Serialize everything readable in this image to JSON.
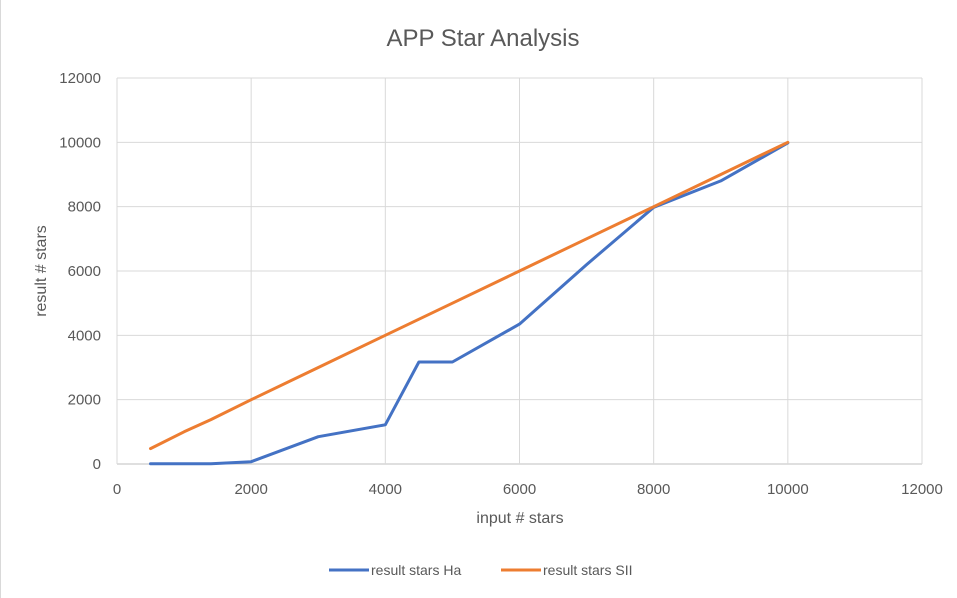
{
  "chart_data": {
    "type": "line",
    "title": "APP Star Analysis",
    "xlabel": "input # stars",
    "ylabel": "result # stars",
    "xlim": [
      0,
      12000
    ],
    "ylim": [
      0,
      12000
    ],
    "xticks": [
      0,
      2000,
      4000,
      6000,
      8000,
      10000,
      12000
    ],
    "yticks": [
      0,
      2000,
      4000,
      6000,
      8000,
      10000,
      12000
    ],
    "grid": true,
    "legend_position": "bottom",
    "series": [
      {
        "name": "result stars Ha",
        "color": "#4472c4",
        "x": [
          500,
          1000,
          1400,
          2000,
          3000,
          4000,
          4500,
          5000,
          6000,
          7000,
          8000,
          9000,
          10000
        ],
        "y": [
          10,
          10,
          10,
          70,
          850,
          1220,
          3170,
          3170,
          4350,
          6200,
          7980,
          8800,
          9980
        ]
      },
      {
        "name": "result stars SII",
        "color": "#ed7d31",
        "x": [
          500,
          1000,
          1400,
          2000,
          3000,
          4000,
          5000,
          6000,
          7000,
          8000,
          9000,
          10000
        ],
        "y": [
          480,
          1000,
          1380,
          2000,
          3000,
          4000,
          5000,
          6000,
          7000,
          8000,
          9000,
          10000
        ]
      }
    ]
  }
}
